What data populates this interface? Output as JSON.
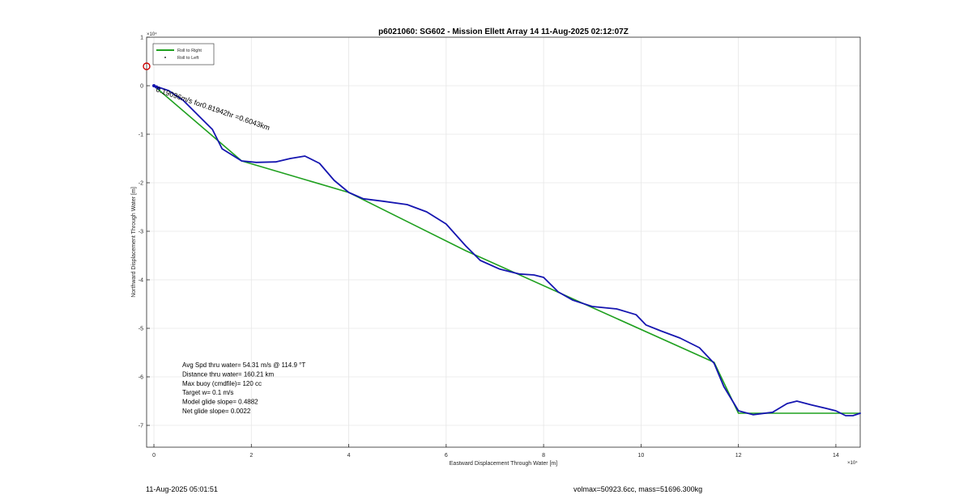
{
  "chart_data": {
    "type": "line",
    "title": "p6021060: SG602 - Mission Ellett Array 14 11-Aug-2025 02:12:07Z",
    "xlabel": "Eastward Displacement Through Water [m]",
    "ylabel": "Northward Displacement Through Water [m]",
    "x_exponent_label": "×10⁴",
    "y_exponent_label": "×10⁴",
    "xlim": [
      -0.15,
      14.5
    ],
    "ylim": [
      -7.45,
      1.0
    ],
    "xticks": [
      0,
      2,
      4,
      6,
      8,
      10,
      12,
      14
    ],
    "yticks": [
      1,
      0,
      -1,
      -2,
      -3,
      -4,
      -5,
      -6,
      -7
    ],
    "units_note": "axis values in units of 10^4 m",
    "grid": true,
    "legend_position": "top-left",
    "legend": [
      {
        "label": "Roll to Right",
        "color": "#1fa01f",
        "style": "line"
      },
      {
        "label": "Roll to Left",
        "color": "#000000",
        "style": "dot"
      }
    ],
    "series": [
      {
        "name": "Roll to Right",
        "color": "#1fa01f",
        "x": [
          0.0,
          1.8,
          4.0,
          6.4,
          11.5,
          12.0,
          14.5
        ],
        "y": [
          0.0,
          -1.55,
          -2.2,
          -3.4,
          -5.7,
          -6.75,
          -6.75
        ]
      },
      {
        "name": "Track",
        "color": "#1515b0",
        "x": [
          0.0,
          0.3,
          0.6,
          0.9,
          1.2,
          1.4,
          1.8,
          2.1,
          2.5,
          2.8,
          3.1,
          3.4,
          3.7,
          4.0,
          4.3,
          4.7,
          5.2,
          5.6,
          6.0,
          6.4,
          6.7,
          7.1,
          7.5,
          7.8,
          8.0,
          8.3,
          8.6,
          9.0,
          9.5,
          9.9,
          10.1,
          10.4,
          10.8,
          11.2,
          11.5,
          11.7,
          12.0,
          12.3,
          12.7,
          13.0,
          13.2,
          13.5,
          13.8,
          14.0,
          14.2,
          14.35,
          14.5
        ],
        "y": [
          0.0,
          -0.1,
          -0.3,
          -0.6,
          -0.9,
          -1.3,
          -1.55,
          -1.58,
          -1.57,
          -1.5,
          -1.45,
          -1.6,
          -1.95,
          -2.2,
          -2.33,
          -2.38,
          -2.45,
          -2.6,
          -2.85,
          -3.3,
          -3.6,
          -3.78,
          -3.88,
          -3.9,
          -3.95,
          -4.25,
          -4.42,
          -4.55,
          -4.6,
          -4.72,
          -4.93,
          -5.05,
          -5.2,
          -5.4,
          -5.72,
          -6.2,
          -6.7,
          -6.78,
          -6.73,
          -6.55,
          -6.5,
          -6.58,
          -6.65,
          -6.7,
          -6.8,
          -6.8,
          -6.75
        ]
      }
    ],
    "annotations": [
      {
        "text": "Avg Spd thru water= 54.31 m/s @ 114.9 °T"
      },
      {
        "text": "Distance thru water= 160.21 km"
      },
      {
        "text": "Max buoy (cmdfile)= 120 cc"
      },
      {
        "text": "Target w= 0.1 m/s"
      },
      {
        "text": "Model glide slope= 0.4882"
      },
      {
        "text": "Net glide slope= 0.0022"
      }
    ],
    "track_label": "0.19096m/s for0.81942hr =0.6043km",
    "start_marker": {
      "x": -0.15,
      "y": 0.4,
      "color": "#cc0000"
    }
  },
  "footer": {
    "timestamp": "11-Aug-2025 05:01:51",
    "volmax": "volmax=50923.6cc, mass=51696.300kg"
  }
}
